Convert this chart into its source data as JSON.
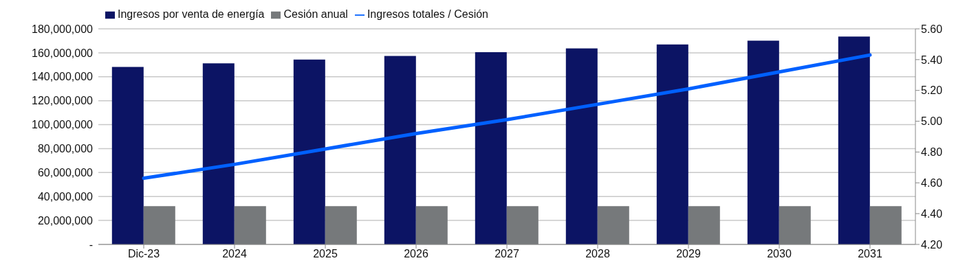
{
  "chart_data": {
    "type": "bar",
    "categories": [
      "Dic-23",
      "2024",
      "2025",
      "2026",
      "2027",
      "2028",
      "2029",
      "2030",
      "2031"
    ],
    "series": [
      {
        "name": "Ingresos por venta de energía",
        "color": "#0c1464",
        "values": [
          148200000,
          151200000,
          154300000,
          157400000,
          160500000,
          163700000,
          167000000,
          170100000,
          173600000
        ]
      },
      {
        "name": "Cesión anual",
        "color": "#76797b",
        "values": [
          32000000,
          32000000,
          32000000,
          32000000,
          32000000,
          32000000,
          32000000,
          32000000,
          32000000
        ]
      },
      {
        "name": "Ingresos totales / Cesión",
        "type": "line",
        "axis": "y2",
        "color": "#0060ff",
        "values": [
          4.63,
          4.72,
          4.82,
          4.92,
          5.01,
          5.11,
          5.21,
          5.32,
          5.43
        ]
      }
    ],
    "ylim": [
      0,
      180000000
    ],
    "yticks": [
      {
        "value": 0,
        "label": "-"
      },
      {
        "value": 20000000,
        "label": "20,000,000"
      },
      {
        "value": 40000000,
        "label": "40,000,000"
      },
      {
        "value": 60000000,
        "label": "60,000,000"
      },
      {
        "value": 80000000,
        "label": "80,000,000"
      },
      {
        "value": 100000000,
        "label": "100,000,000"
      },
      {
        "value": 120000000,
        "label": "120,000,000"
      },
      {
        "value": 140000000,
        "label": "140,000,000"
      },
      {
        "value": 160000000,
        "label": "160,000,000"
      },
      {
        "value": 180000000,
        "label": "180,000,000"
      }
    ],
    "y2lim": [
      4.2,
      5.6
    ],
    "y2ticks": [
      {
        "value": 4.2,
        "label": "4.20"
      },
      {
        "value": 4.4,
        "label": "4.40"
      },
      {
        "value": 4.6,
        "label": "4.60"
      },
      {
        "value": 4.8,
        "label": "4.80"
      },
      {
        "value": 5.0,
        "label": "5.00"
      },
      {
        "value": 5.2,
        "label": "5.20"
      },
      {
        "value": 5.4,
        "label": "5.40"
      },
      {
        "value": 5.6,
        "label": "5.60"
      }
    ],
    "grid": "y",
    "legend": "top left",
    "marker": "none",
    "line_style": "solid"
  }
}
